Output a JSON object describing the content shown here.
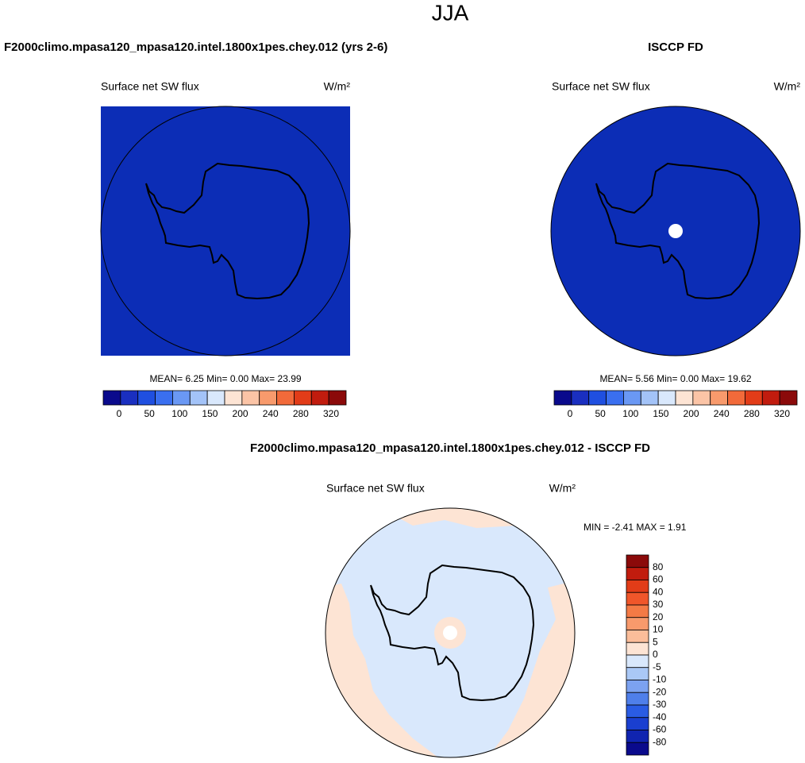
{
  "title": "JJA",
  "panels": [
    {
      "title": "F2000climo.mpasa120_mpasa120.intel.1800x1pes.chey.012 (yrs 2-6)",
      "left_label": "Surface net SW flux",
      "units": "W/m²",
      "stats": "MEAN=  6.25  Min=   0.00  Max=  23.99",
      "map_color": "#0c2db6"
    },
    {
      "title": "ISCCP FD",
      "left_label": "Surface net SW flux",
      "units": "W/m²",
      "stats": "MEAN=  5.56  Min=   0.00  Max=  19.62",
      "map_color": "#0c2db6"
    }
  ],
  "colorbar": {
    "ticks": [
      0,
      50,
      100,
      150,
      200,
      240,
      280,
      320
    ],
    "colors": [
      "#0a0a8c",
      "#1a2fc0",
      "#1f4fe0",
      "#3a6ff0",
      "#6a98f4",
      "#a3c3f8",
      "#d9e8fc",
      "#fde4d4",
      "#fbc4a6",
      "#f89a6c",
      "#f26a3a",
      "#e23c18",
      "#c11c0e",
      "#8b0a0a"
    ]
  },
  "diff": {
    "title": "F2000climo.mpasa120_mpasa120.intel.1800x1pes.chey.012 - ISCCP FD",
    "left_label": "Surface net SW flux",
    "units": "W/m²",
    "stats": "MIN = -2.41  MAX =   1.91",
    "ticks": [
      80,
      60,
      40,
      30,
      20,
      10,
      5,
      0,
      -5,
      -10,
      -20,
      -30,
      -40,
      -60,
      -80
    ],
    "colors": [
      "#8b0a0a",
      "#c11c0e",
      "#e23c18",
      "#f0562a",
      "#f47a45",
      "#f89a6c",
      "#fbbd9a",
      "#fde4d4",
      "#d9e8fc",
      "#aac8f6",
      "#7ca2f0",
      "#4f7fea",
      "#2a5ce4",
      "#1a3fd0",
      "#1024b0",
      "#0a0a8c"
    ]
  }
}
